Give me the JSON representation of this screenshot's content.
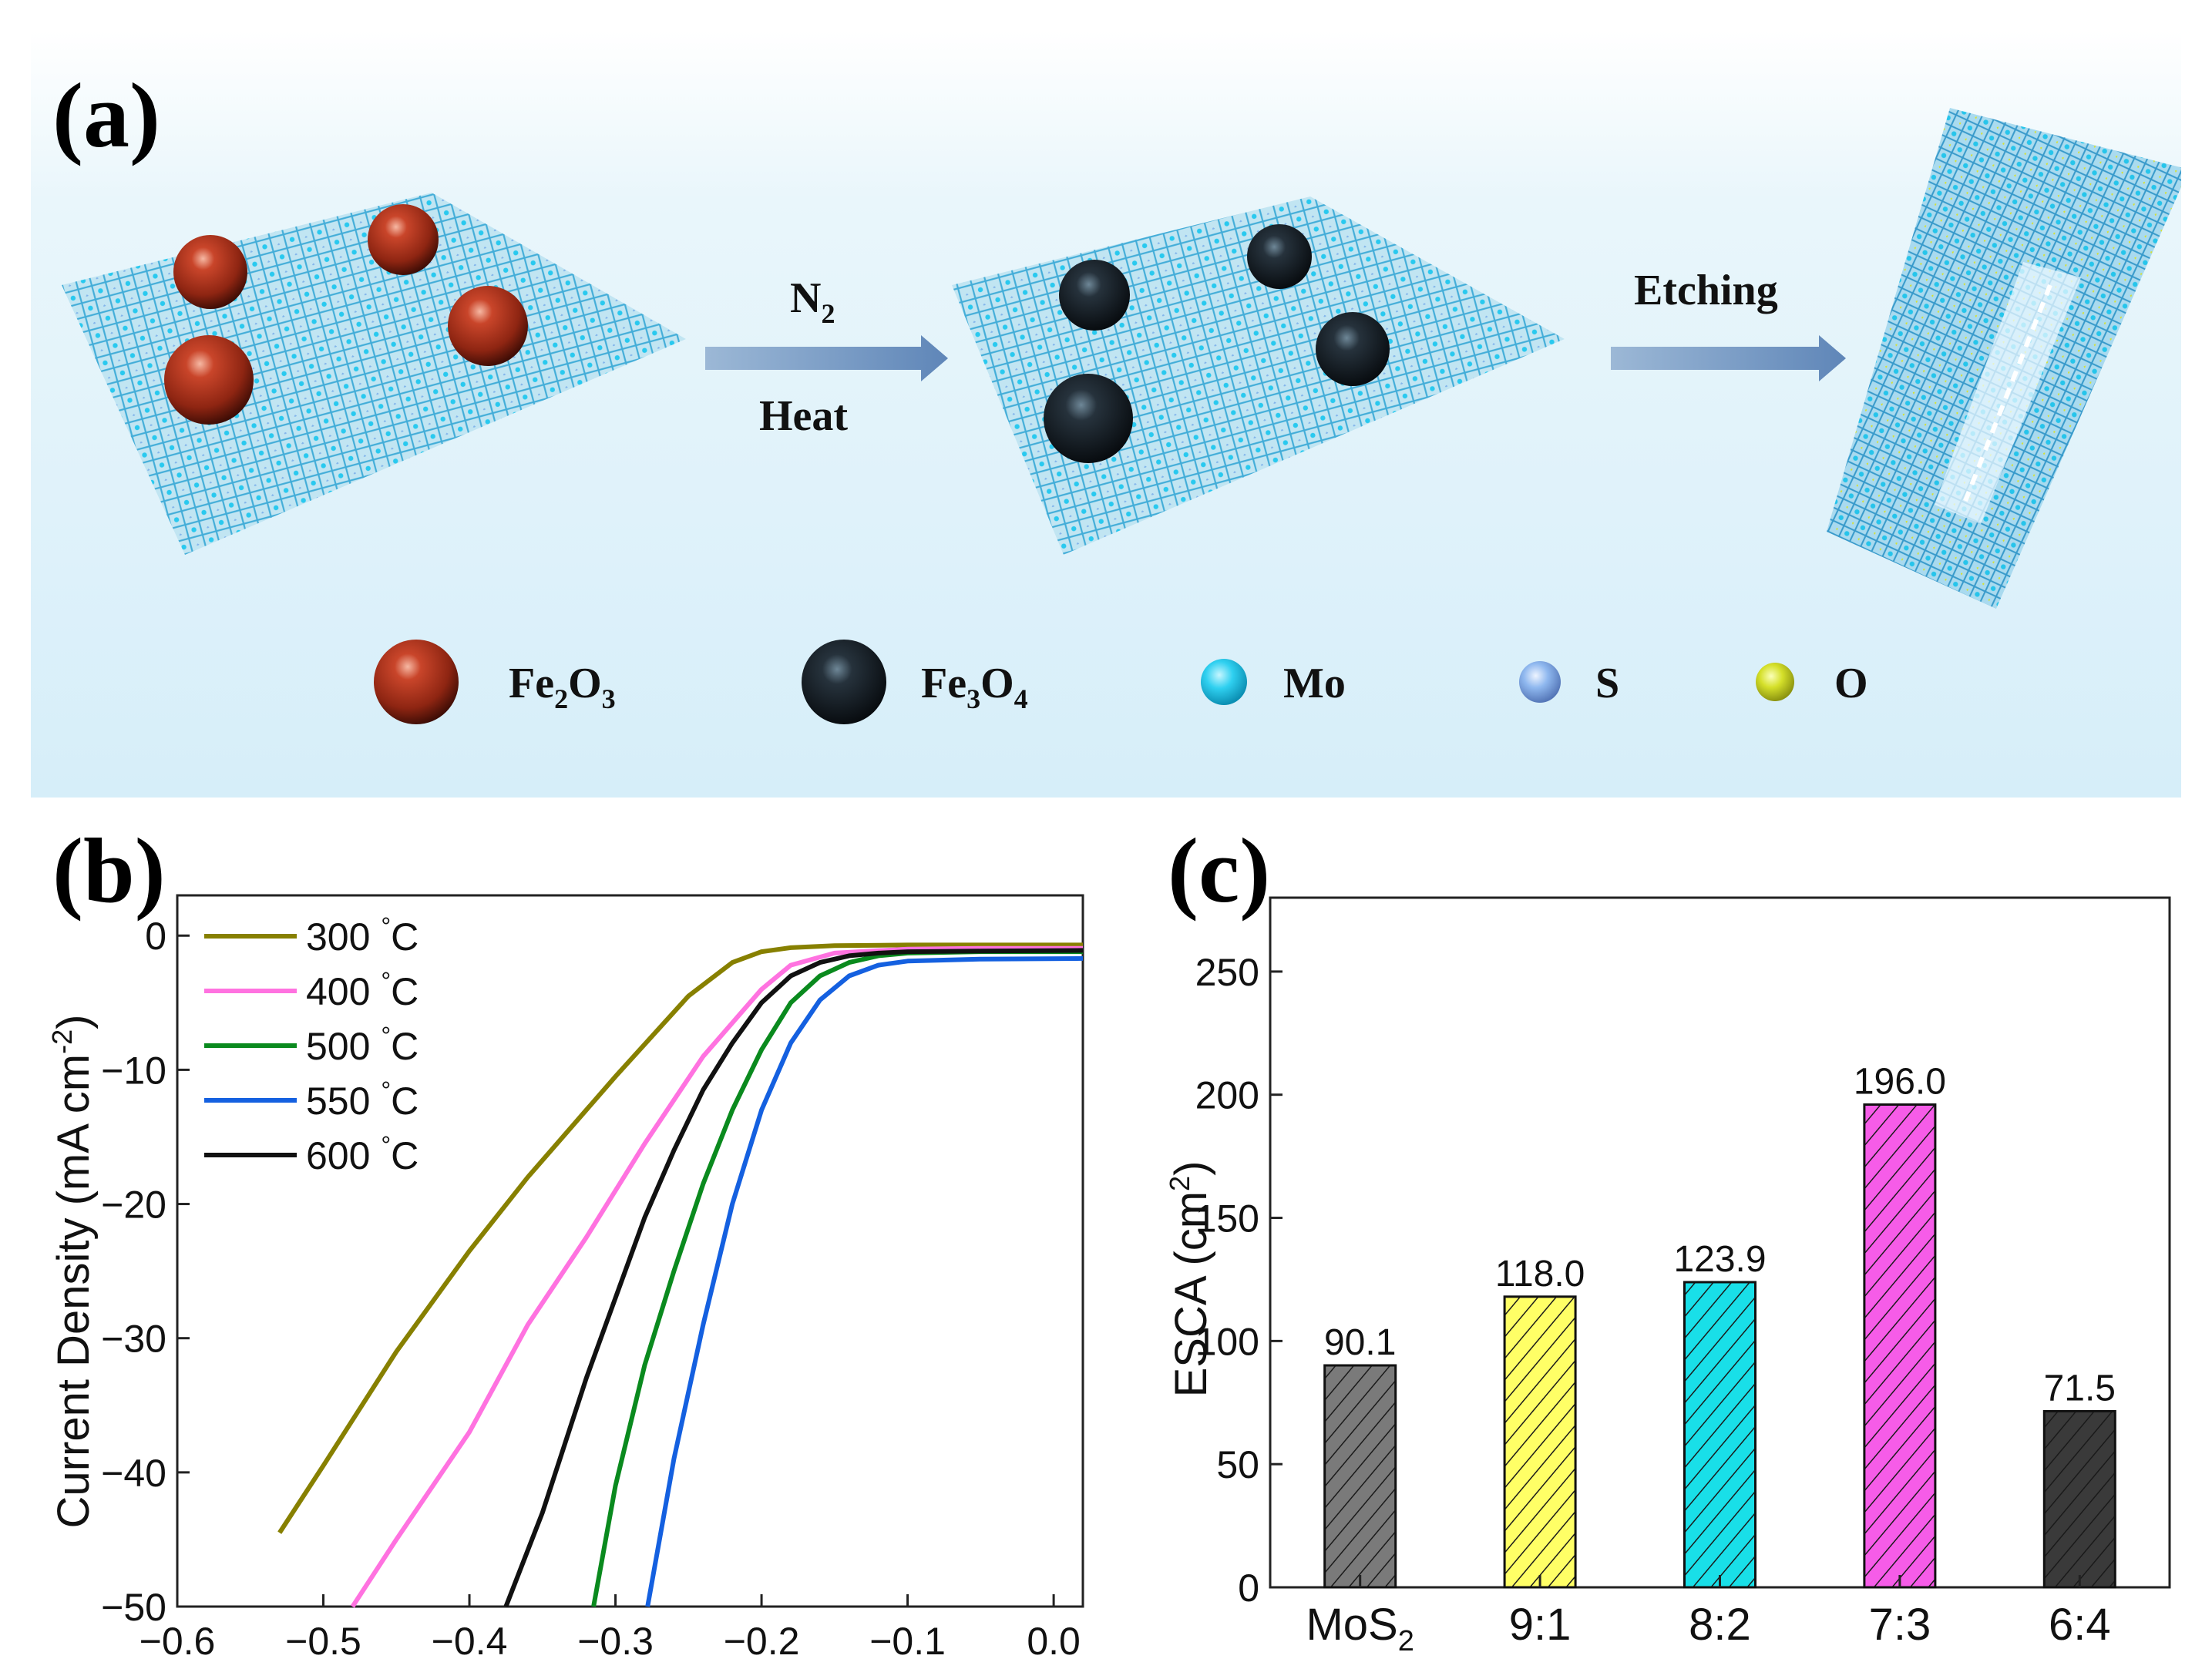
{
  "panel_a": {
    "label": "(a)",
    "step1_top": "N",
    "step1_top_sub": "2",
    "step1_bottom": "Heat",
    "step2_top": "Etching",
    "legend": [
      {
        "name": "Fe",
        "sub1": "2",
        "mid": "O",
        "sub2": "3",
        "color": "#9c2a16",
        "icon": "fe2o3-sphere-icon"
      },
      {
        "name": "Fe",
        "sub1": "3",
        "mid": "O",
        "sub2": "4",
        "color": "#151a1f",
        "icon": "fe3o4-sphere-icon"
      },
      {
        "name": "Mo",
        "color": "#2fd0f0",
        "icon": "mo-atom-icon"
      },
      {
        "name": "S",
        "color": "#8fb8ef",
        "icon": "s-atom-icon"
      },
      {
        "name": "O",
        "color": "#d5e02a",
        "icon": "o-atom-icon"
      }
    ]
  },
  "panel_b": {
    "label": "(b)",
    "ylabel": "Current Density (mA cm",
    "ylabel_sup": "-2",
    "ylabel_end": ")",
    "unit": "°C"
  },
  "panel_c": {
    "label": "(c)",
    "ylabel": "ESCA (cm",
    "ylabel_sup": "2",
    "ylabel_end": ")",
    "first_tick_sub": "2"
  },
  "chart_data": [
    {
      "type": "line",
      "title": "",
      "xlabel": "",
      "ylabel": "Current Density (mA cm-2)",
      "xlim": [
        -0.6,
        0.02
      ],
      "ylim": [
        -50,
        3
      ],
      "xticks": [
        -0.6,
        -0.5,
        -0.4,
        -0.3,
        -0.2,
        -0.1,
        0.0
      ],
      "xtick_labels": [
        "−0.6",
        "−0.5",
        "−0.4",
        "−0.3",
        "−0.2",
        "−0.1",
        "0.0"
      ],
      "yticks": [
        0,
        -10,
        -20,
        -30,
        -40,
        -50
      ],
      "ytick_labels": [
        "0",
        "−10",
        "−20",
        "−30",
        "−40",
        "−50"
      ],
      "legend_position": "top-left",
      "series": [
        {
          "name": "300 °C",
          "label": "300",
          "color": "#878000",
          "x": [
            -0.53,
            -0.5,
            -0.45,
            -0.4,
            -0.36,
            -0.3,
            -0.25,
            -0.22,
            -0.2,
            -0.18,
            -0.15,
            -0.1,
            -0.05,
            0.02
          ],
          "y": [
            -44.5,
            -39.5,
            -31,
            -23.5,
            -18,
            -10.5,
            -4.5,
            -2,
            -1.2,
            -0.9,
            -0.75,
            -0.7,
            -0.7,
            -0.7
          ]
        },
        {
          "name": "400 °C",
          "label": "400",
          "color": "#ff72e0",
          "x": [
            -0.48,
            -0.45,
            -0.4,
            -0.36,
            -0.32,
            -0.28,
            -0.24,
            -0.2,
            -0.18,
            -0.15,
            -0.1,
            -0.05,
            0.02
          ],
          "y": [
            -50,
            -45,
            -37,
            -29,
            -22.5,
            -15.5,
            -9,
            -4,
            -2.2,
            -1.3,
            -1.0,
            -0.95,
            -0.95
          ]
        },
        {
          "name": "500 °C",
          "label": "500",
          "color": "#0a8a1e",
          "x": [
            -0.315,
            -0.3,
            -0.28,
            -0.26,
            -0.24,
            -0.22,
            -0.2,
            -0.18,
            -0.16,
            -0.14,
            -0.12,
            -0.1,
            -0.05,
            0.02
          ],
          "y": [
            -50,
            -41,
            -32,
            -25,
            -18.5,
            -13,
            -8.5,
            -5,
            -3,
            -2,
            -1.5,
            -1.3,
            -1.2,
            -1.2
          ]
        },
        {
          "name": "550 °C",
          "label": "550",
          "color": "#1460e0",
          "x": [
            -0.278,
            -0.26,
            -0.24,
            -0.22,
            -0.2,
            -0.18,
            -0.16,
            -0.14,
            -0.12,
            -0.1,
            -0.05,
            0.02
          ],
          "y": [
            -50,
            -39,
            -29,
            -20,
            -13,
            -8,
            -4.8,
            -3,
            -2.2,
            -1.9,
            -1.75,
            -1.7
          ]
        },
        {
          "name": "600 °C",
          "label": "600",
          "color": "#111111",
          "x": [
            -0.375,
            -0.35,
            -0.32,
            -0.3,
            -0.28,
            -0.26,
            -0.24,
            -0.22,
            -0.2,
            -0.18,
            -0.16,
            -0.14,
            -0.12,
            -0.1,
            -0.05,
            0.02
          ],
          "y": [
            -50,
            -43,
            -33,
            -27,
            -21,
            -16,
            -11.5,
            -8,
            -5,
            -3,
            -2,
            -1.5,
            -1.3,
            -1.2,
            -1.15,
            -1.1
          ]
        }
      ]
    },
    {
      "type": "bar",
      "title": "",
      "xlabel": "",
      "ylabel": "ESCA (cm2)",
      "ylim": [
        0,
        280
      ],
      "yticks": [
        0,
        50,
        100,
        150,
        200,
        250
      ],
      "categories": [
        "MoS",
        "9:1",
        "8:2",
        "7:3",
        "6:4"
      ],
      "values": [
        90.1,
        118.0,
        123.9,
        196.0,
        71.5
      ],
      "value_labels": [
        "90.1",
        "118.0",
        "123.9",
        "196.0",
        "71.5"
      ],
      "colors": [
        "#7a7a7a",
        "#ffff66",
        "#19dfe8",
        "#f65ce8",
        "#3a3a3a"
      ],
      "grid": false
    }
  ]
}
